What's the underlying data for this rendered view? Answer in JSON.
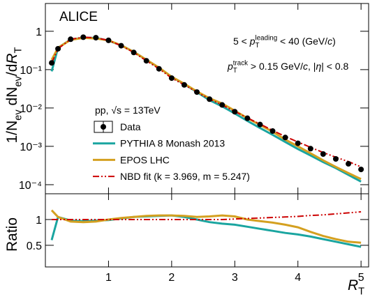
{
  "chart_data": [
    {
      "type": "line",
      "title": "ALICE",
      "log_y": true,
      "legend": true,
      "show_x_tick_labels": false,
      "y_label": [
        "1/N",
        "ev",
        " dN",
        "ev",
        "/d",
        "R",
        "T"
      ],
      "annotations": [
        [
          "5 < ",
          "p",
          "leading",
          "T",
          " < 40 (GeV/",
          "c",
          ")"
        ],
        [
          "p",
          "track",
          "T",
          " > 0.15 GeV/",
          "c",
          ", |",
          "η",
          "| < 0.8"
        ],
        [
          "pp, √s = 13TeV"
        ]
      ],
      "x": [
        0.1,
        0.2,
        0.4,
        0.6,
        0.8,
        1.0,
        1.2,
        1.4,
        1.6,
        1.8,
        2.0,
        2.2,
        2.4,
        2.6,
        2.8,
        3.0,
        3.2,
        3.4,
        3.6,
        3.8,
        4.0,
        4.2,
        4.4,
        4.6,
        4.8,
        5.0
      ],
      "xlim": [
        0,
        5.12
      ],
      "xticks": [
        1,
        2,
        3,
        4,
        5
      ],
      "ylim": [
        5.8e-05,
        5.3
      ],
      "yticks": [
        {
          "value": 0.0001,
          "label": "10⁻⁴"
        },
        {
          "value": 0.001,
          "label": "10⁻³"
        },
        {
          "value": 0.01,
          "label": "10⁻²"
        },
        {
          "value": 0.1,
          "label": "10⁻¹"
        },
        1
      ],
      "series": [
        {
          "name": "Data",
          "color": "#000000",
          "marker": true,
          "values": [
            0.15,
            0.35,
            0.62,
            0.7,
            0.68,
            0.58,
            0.42,
            0.28,
            0.17,
            0.105,
            0.06,
            0.04,
            0.026,
            0.017,
            0.012,
            0.008,
            0.0054,
            0.0037,
            0.0025,
            0.0017,
            0.0012,
            0.00087,
            0.00063,
            0.00047,
            0.00035,
            0.00025
          ]
        },
        {
          "name": "PYTHIA 8 Monash 2013",
          "color": "#1aa5a0",
          "values": [
            0.09,
            0.37,
            0.61,
            0.68,
            0.67,
            0.57,
            0.43,
            0.29,
            0.18,
            0.112,
            0.065,
            0.042,
            0.026,
            0.016,
            0.011,
            0.0072,
            0.0046,
            0.003,
            0.002,
            0.0013,
            0.00085,
            0.00058,
            0.00039,
            0.00027,
            0.00018,
            0.00012
          ]
        },
        {
          "name": "EPOS LHC",
          "color": "#d4a020",
          "values": [
            0.18,
            0.37,
            0.6,
            0.67,
            0.65,
            0.58,
            0.43,
            0.29,
            0.18,
            0.113,
            0.065,
            0.043,
            0.027,
            0.018,
            0.013,
            0.0085,
            0.0054,
            0.0036,
            0.0024,
            0.0015,
            0.001,
            0.00066,
            0.00043,
            0.00029,
            0.0002,
            0.00014
          ]
        },
        {
          "name": "NBD fit (k = 3.969, m = 5.247)",
          "color": "#cc0000",
          "dashed": true,
          "values": [
            0.15,
            0.35,
            0.62,
            0.7,
            0.68,
            0.58,
            0.42,
            0.28,
            0.17,
            0.105,
            0.06,
            0.04,
            0.026,
            0.017,
            0.012,
            0.0081,
            0.0055,
            0.0038,
            0.0026,
            0.0018,
            0.0013,
            0.00094,
            0.00069,
            0.00052,
            0.0004,
            0.00029
          ]
        }
      ]
    },
    {
      "type": "line",
      "y_label": [
        "Ratio"
      ],
      "x_label": [
        "R",
        "T"
      ],
      "show_x_tick_labels": true,
      "x": [
        0.1,
        0.2,
        0.4,
        0.6,
        0.8,
        1.0,
        1.2,
        1.4,
        1.6,
        1.8,
        2.0,
        2.2,
        2.4,
        2.6,
        2.8,
        3.0,
        3.2,
        3.4,
        3.6,
        3.8,
        4.0,
        4.2,
        4.4,
        4.6,
        4.8,
        5.0
      ],
      "xlim": [
        0,
        5.12
      ],
      "xticks": [
        1,
        2,
        3,
        4,
        5
      ],
      "ylim": [
        0.08,
        1.5
      ],
      "yticks": [
        0.5,
        1
      ],
      "series": [
        {
          "color": "#1aa5a0",
          "values": [
            0.6,
            1.05,
            0.98,
            0.97,
            0.98,
            0.99,
            1.02,
            1.05,
            1.06,
            1.07,
            1.08,
            1.05,
            1.0,
            0.95,
            0.92,
            0.9,
            0.86,
            0.82,
            0.78,
            0.74,
            0.71,
            0.67,
            0.62,
            0.57,
            0.52,
            0.47
          ]
        },
        {
          "color": "#d4a020",
          "values": [
            1.18,
            1.05,
            0.96,
            0.95,
            0.96,
            1.0,
            1.03,
            1.05,
            1.07,
            1.08,
            1.08,
            1.07,
            1.05,
            1.06,
            1.08,
            1.06,
            1.0,
            0.97,
            0.94,
            0.9,
            0.85,
            0.76,
            0.68,
            0.62,
            0.57,
            0.55
          ]
        },
        {
          "color": "#cc0000",
          "dashed": true,
          "values": [
            1,
            1,
            1,
            1,
            1,
            1,
            1,
            1,
            1,
            1,
            1,
            1,
            1,
            1,
            1,
            1.01,
            1.02,
            1.03,
            1.04,
            1.05,
            1.06,
            1.08,
            1.09,
            1.11,
            1.13,
            1.15
          ]
        }
      ]
    }
  ]
}
